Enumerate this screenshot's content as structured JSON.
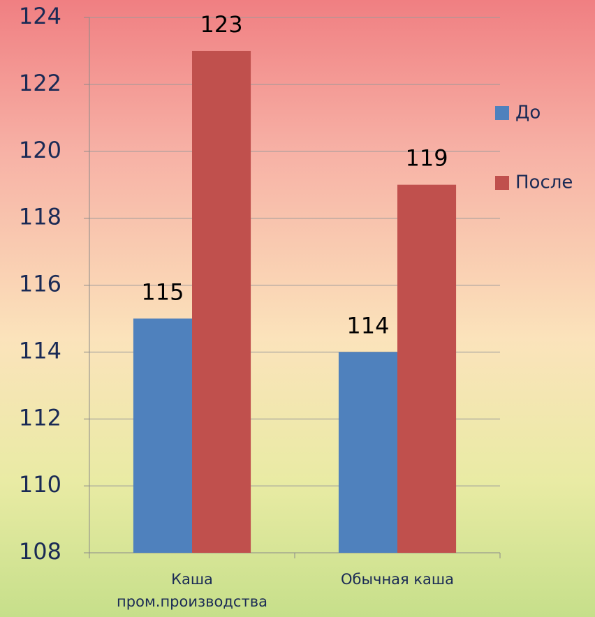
{
  "chart_data": {
    "type": "bar",
    "categories": [
      "Каша пром.производства",
      "Обычная каша"
    ],
    "series": [
      {
        "name": "До",
        "color": "#4f81bd",
        "values": [
          115,
          114
        ]
      },
      {
        "name": "После",
        "color": "#c0504d",
        "values": [
          123,
          119
        ]
      }
    ],
    "ylim": [
      108,
      124
    ],
    "yticks": [
      108,
      110,
      112,
      114,
      116,
      118,
      120,
      122,
      124
    ],
    "grid": true,
    "legend": "right"
  }
}
